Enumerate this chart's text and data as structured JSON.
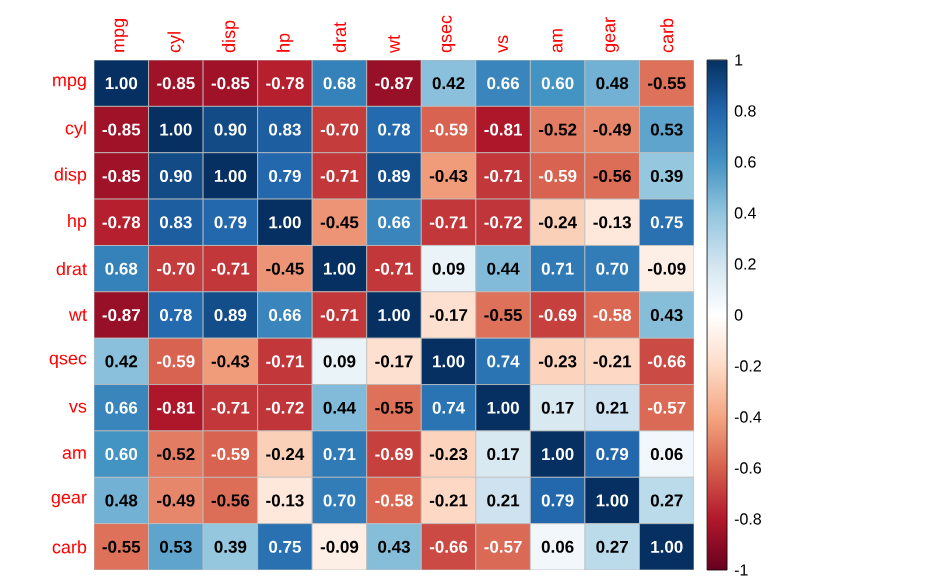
{
  "chart_data": {
    "type": "heatmap",
    "categories": [
      "mpg",
      "cyl",
      "disp",
      "hp",
      "drat",
      "wt",
      "qsec",
      "vs",
      "am",
      "gear",
      "carb"
    ],
    "y_categories": [
      "mpg",
      "cyl",
      "disp",
      "hp",
      "drat",
      "wt",
      "qsec",
      "vs",
      "am",
      "gear",
      "carb"
    ],
    "cells": [
      [
        1.0,
        -0.85,
        -0.85,
        -0.78,
        0.68,
        -0.87,
        0.42,
        0.66,
        0.6,
        0.48,
        -0.55
      ],
      [
        -0.85,
        1.0,
        0.9,
        0.83,
        -0.7,
        0.78,
        -0.59,
        -0.81,
        -0.52,
        -0.49,
        0.53
      ],
      [
        -0.85,
        0.9,
        1.0,
        0.79,
        -0.71,
        0.89,
        -0.43,
        -0.71,
        -0.59,
        -0.56,
        0.39
      ],
      [
        -0.78,
        0.83,
        0.79,
        1.0,
        -0.45,
        0.66,
        -0.71,
        -0.72,
        -0.24,
        -0.13,
        0.75
      ],
      [
        0.68,
        -0.7,
        -0.71,
        -0.45,
        1.0,
        -0.71,
        0.09,
        0.44,
        0.71,
        0.7,
        -0.09
      ],
      [
        -0.87,
        0.78,
        0.89,
        0.66,
        -0.71,
        1.0,
        -0.17,
        -0.55,
        -0.69,
        -0.58,
        0.43
      ],
      [
        0.42,
        -0.59,
        -0.43,
        -0.71,
        0.09,
        -0.17,
        1.0,
        0.74,
        -0.23,
        -0.21,
        -0.66
      ],
      [
        0.66,
        -0.81,
        -0.71,
        -0.72,
        0.44,
        -0.55,
        0.74,
        1.0,
        0.17,
        0.21,
        -0.57
      ],
      [
        0.6,
        -0.52,
        -0.59,
        -0.24,
        0.71,
        -0.69,
        -0.23,
        0.17,
        1.0,
        0.79,
        0.06
      ],
      [
        0.48,
        -0.49,
        -0.56,
        -0.13,
        0.7,
        -0.58,
        -0.21,
        0.21,
        0.79,
        1.0,
        0.27
      ],
      [
        -0.55,
        0.53,
        0.39,
        0.75,
        -0.09,
        0.43,
        -0.66,
        -0.57,
        0.06,
        0.27,
        1.0
      ]
    ],
    "cell_labels": [
      [
        "1.00",
        "-0.85",
        "-0.85",
        "-0.78",
        "0.68",
        "-0.87",
        "0.42",
        "0.66",
        "0.60",
        "0.48",
        "-0.55"
      ],
      [
        "-0.85",
        "1.00",
        "0.90",
        "0.83",
        "-0.70",
        "0.78",
        "-0.59",
        "-0.81",
        "-0.52",
        "-0.49",
        "0.53"
      ],
      [
        "-0.85",
        "0.90",
        "1.00",
        "0.79",
        "-0.71",
        "0.89",
        "-0.43",
        "-0.71",
        "-0.59",
        "-0.56",
        "0.39"
      ],
      [
        "-0.78",
        "0.83",
        "0.79",
        "1.00",
        "-0.45",
        "0.66",
        "-0.71",
        "-0.72",
        "-0.24",
        "-0.13",
        "0.75"
      ],
      [
        "0.68",
        "-0.70",
        "-0.71",
        "-0.45",
        "1.00",
        "-0.71",
        "0.09",
        "0.44",
        "0.71",
        "0.70",
        "-0.09"
      ],
      [
        "-0.87",
        "0.78",
        "0.89",
        "0.66",
        "-0.71",
        "1.00",
        "-0.17",
        "-0.55",
        "-0.69",
        "-0.58",
        "0.43"
      ],
      [
        "0.42",
        "-0.59",
        "-0.43",
        "-0.71",
        "0.09",
        "-0.17",
        "1.00",
        "0.74",
        "-0.23",
        "-0.21",
        "-0.66"
      ],
      [
        "0.66",
        "-0.81",
        "-0.71",
        "-0.72",
        "0.44",
        "-0.55",
        "0.74",
        "1.00",
        "0.17",
        "0.21",
        "-0.57"
      ],
      [
        "0.60",
        "-0.52",
        "-0.59",
        "-0.24",
        "0.71",
        "-0.69",
        "-0.23",
        "0.17",
        "1.00",
        "0.79",
        "0.06"
      ],
      [
        "0.48",
        "-0.49",
        "-0.56",
        "-0.13",
        "0.70",
        "-0.58",
        "-0.21",
        "0.21",
        "0.79",
        "1.00",
        "0.27"
      ],
      [
        "-0.55",
        "0.53",
        "0.39",
        "0.75",
        "-0.09",
        "0.43",
        "-0.66",
        "-0.57",
        "0.06",
        "0.27",
        "1.00"
      ]
    ],
    "clim": [
      -1,
      1
    ],
    "cticks": [
      -1,
      -0.8,
      -0.6,
      -0.4,
      -0.2,
      0,
      0.2,
      0.4,
      0.6,
      0.8,
      1
    ]
  }
}
